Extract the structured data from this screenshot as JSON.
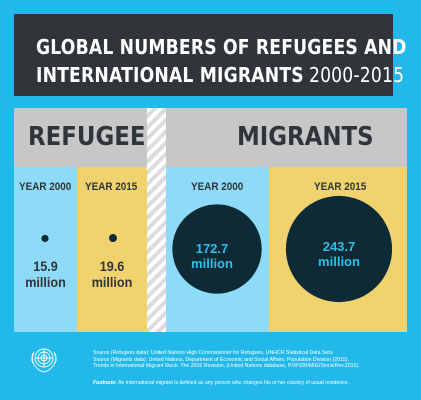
{
  "title": {
    "line1": "GLOBAL NUMBERS OF REFUGEES AND",
    "line2": "INTERNATIONAL MIGRANTS",
    "years": "2000-2015"
  },
  "colors": {
    "background": "#23b8ea",
    "title_bar": "#2f3538",
    "section_header": "#c7c7c7",
    "year_2000": "#8ddbf6",
    "year_2015": "#f0d26e",
    "bubble": "#0d2a36",
    "bubble_text": "#2bbfe9"
  },
  "chart_data": [
    {
      "type": "bubble",
      "title": "REFUGEES",
      "categories": [
        "YEAR 2000",
        "YEAR 2015"
      ],
      "values": [
        15.9,
        19.6
      ],
      "value_labels": [
        "15.9\nmillion",
        "19.6\nmillion"
      ],
      "unit": "million"
    },
    {
      "type": "bubble",
      "title": "MIGRANTS",
      "categories": [
        "YEAR 2000",
        "YEAR 2015"
      ],
      "values": [
        172.7,
        243.7
      ],
      "value_labels": [
        "172.7\nmillion",
        "243.7\nmillion"
      ],
      "unit": "million"
    }
  ],
  "sources": "Source (Refugees data): United Nations High Commissioner for Refugees, UNHCR Statistical Data Sets.\nSource (Migrants data): United Nations, Department of Economic and Social Affairs, Population Division (2015).\nTrends in International Migrant Stock: The 2015 Revision, (United Nations database, POP/DB/MIG/Stock/Rev.2015).",
  "footnote_label": "Footnote:",
  "footnote_text": "An international migrant is defined as any person who changes his or her country of usual residence.",
  "logo": "un-emblem-icon"
}
